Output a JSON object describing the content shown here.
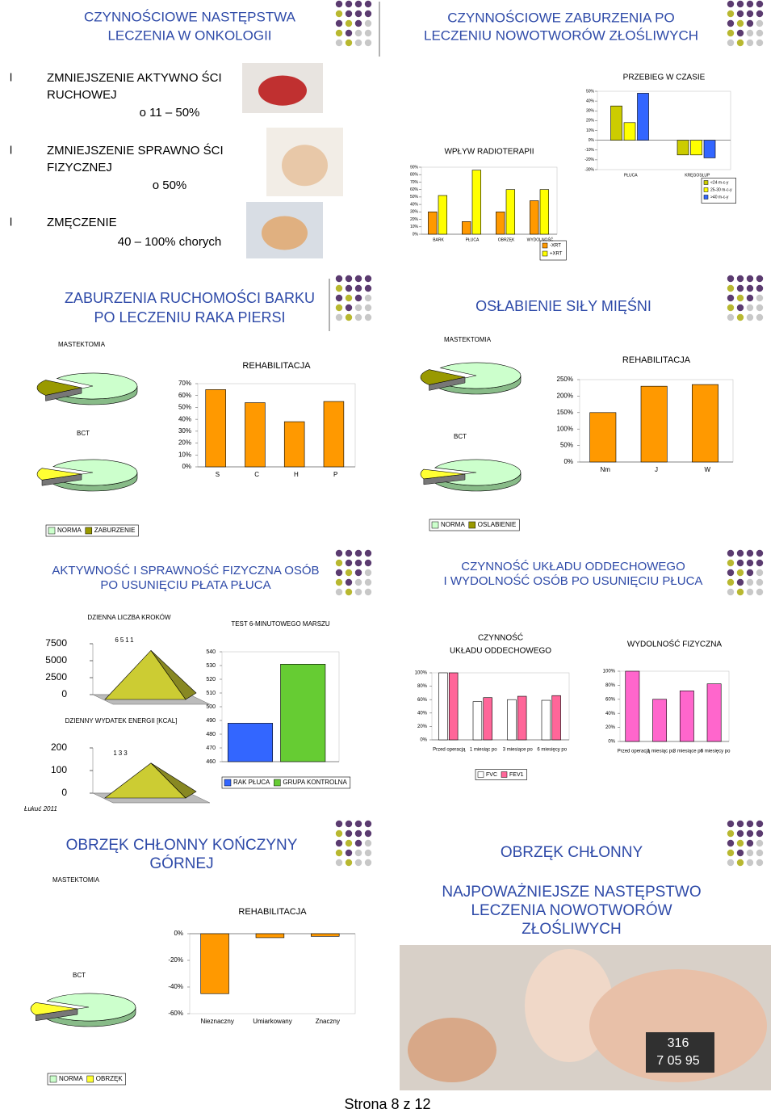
{
  "slides": [
    {
      "title": [
        "CZYNNOŚCIOWE NASTĘPSTWA",
        "LECZENIA W ONKOLOGII"
      ],
      "items": [
        {
          "bullet": "l",
          "lines": [
            "ZMNIEJSZENIE AKTYWNO ŚCI",
            "RUCHOWEJ"
          ],
          "detail": "o 11 – 50%"
        },
        {
          "bullet": "l",
          "lines": [
            "ZMNIEJSZENIE SPRAWNO ŚCI",
            "FIZYCZNEJ"
          ],
          "detail": "o 50%"
        },
        {
          "bullet": "l",
          "lines": [
            "ZMĘCZENIE"
          ],
          "detail": "40 – 100% chorych"
        }
      ]
    },
    {
      "title": [
        "CZYNNOŚCIOWE ZABURZENIA PO",
        "LECZENIU NOWOTWORÓW ZŁOŚLIWYCH"
      ],
      "charts": [
        {
          "type": "bar",
          "title": [
            "WPŁYW RADIOTERAPII"
          ],
          "categories": [
            "BARK",
            "PŁUCA",
            "OBRZĘK",
            "WYDOLNOŚĆ"
          ],
          "series": [
            {
              "name": "-XRT",
              "color": "#ff9900",
              "values": [
                30,
                17,
                30,
                45
              ]
            },
            {
              "name": "+XRT",
              "color": "#ffff00",
              "values": [
                52,
                86,
                60,
                60
              ]
            }
          ],
          "ylim": [
            0,
            90
          ],
          "yticks": [
            {
              "value": 0,
              "label": "0%"
            },
            {
              "value": 10,
              "label": "10%"
            },
            {
              "value": 20,
              "label": "20%"
            },
            {
              "value": 30,
              "label": "30%"
            },
            {
              "value": 40,
              "label": "40%"
            },
            {
              "value": 50,
              "label": "50%"
            },
            {
              "value": 60,
              "label": "60%"
            },
            {
              "value": 70,
              "label": "70%"
            },
            {
              "value": 80,
              "label": "80%"
            },
            {
              "value": 90,
              "label": "90%"
            }
          ]
        },
        {
          "type": "bar",
          "title": [
            "PRZEBIEG W CZASIE"
          ],
          "categories": [
            "PŁUCA",
            "KRĘGOSŁUP"
          ],
          "series": [
            {
              "name": "<24 m-c-y",
              "color": "#cccc00",
              "values": [
                35,
                -15
              ]
            },
            {
              "name": "25-30 m-c-y",
              "color": "#ffff00",
              "values": [
                18,
                -15
              ]
            },
            {
              "name": ">40 m-c-y",
              "color": "#3366ff",
              "values": [
                48,
                -18
              ]
            }
          ],
          "ylim": [
            -30,
            50
          ],
          "yticks": [
            {
              "value": -30,
              "label": "-30%"
            },
            {
              "value": -20,
              "label": "-20%"
            },
            {
              "value": -10,
              "label": "-10%"
            },
            {
              "value": 0,
              "label": "0%"
            },
            {
              "value": 10,
              "label": "10%"
            },
            {
              "value": 20,
              "label": "20%"
            },
            {
              "value": 30,
              "label": "30%"
            },
            {
              "value": 40,
              "label": "40%"
            },
            {
              "value": 50,
              "label": "50%"
            }
          ]
        }
      ]
    },
    {
      "title": [
        "ZABURZENIA RUCHOMOŚCI BARKU",
        "PO LECZENIU RAKA PIERSI"
      ],
      "charts": [
        {
          "type": "pie",
          "categories": [
            "NORMA",
            "ZABURZENIE"
          ],
          "series": [
            {
              "name": "MASTEKTOMIA",
              "colors": [
                "#ccffcc",
                "#999900"
              ],
              "values": [
                80,
                20
              ]
            },
            {
              "name": "BCT",
              "colors": [
                "#ccffcc",
                "#ffff33"
              ],
              "values": [
                85,
                15
              ]
            }
          ]
        },
        {
          "type": "bar",
          "title": [
            "REHABILITACJA"
          ],
          "categories": [
            "S",
            "C",
            "H",
            "P"
          ],
          "values": [
            65,
            54,
            38,
            55
          ],
          "color": "#ff9900",
          "ylim": [
            0,
            70
          ],
          "yticks": [
            {
              "value": 0,
              "label": "0%"
            },
            {
              "value": 10,
              "label": "10%"
            },
            {
              "value": 20,
              "label": "20%"
            },
            {
              "value": 30,
              "label": "30%"
            },
            {
              "value": 40,
              "label": "40%"
            },
            {
              "value": 50,
              "label": "50%"
            },
            {
              "value": 60,
              "label": "60%"
            },
            {
              "value": 70,
              "label": "70%"
            }
          ]
        }
      ]
    },
    {
      "title": [
        "OSŁABIENIE SIŁY MIĘŚNI"
      ],
      "charts": [
        {
          "type": "pie",
          "categories": [
            "NORMA",
            "OSLABIENIE"
          ],
          "series": [
            {
              "name": "MASTEKTOMIA",
              "colors": [
                "#ccffcc",
                "#999900"
              ],
              "values": [
                80,
                20
              ]
            },
            {
              "name": "BCT",
              "colors": [
                "#ccffcc",
                "#ffff33"
              ],
              "values": [
                88,
                12
              ]
            }
          ]
        },
        {
          "type": "bar",
          "title": [
            "REHABILITACJA"
          ],
          "categories": [
            "Nm",
            "J",
            "W"
          ],
          "values": [
            150,
            230,
            235
          ],
          "color": "#ff9900",
          "ylim": [
            0,
            250
          ],
          "yticks": [
            {
              "value": 0,
              "label": "0%"
            },
            {
              "value": 50,
              "label": "50%"
            },
            {
              "value": 100,
              "label": "100%"
            },
            {
              "value": 150,
              "label": "150%"
            },
            {
              "value": 200,
              "label": "200%"
            },
            {
              "value": 250,
              "label": "250%"
            }
          ]
        }
      ]
    },
    {
      "title": [
        "AKTYWNOŚĆ I SPRAWNOŚĆ FIZYCZNA OSÓB",
        "PO USUNIĘCIU PŁATA PŁUCA"
      ],
      "charts": [
        {
          "type": "pyramid",
          "title": [
            "DZIENNA LICZBA KROKÓW"
          ],
          "value": 6511,
          "color": "#cccc33",
          "ylim": [
            0,
            7500
          ],
          "yticks": [
            0,
            2500,
            5000,
            7500
          ]
        },
        {
          "type": "pyramid",
          "title": [
            "DZIENNY WYDATEK ENERGII [KCAL]"
          ],
          "value": 133,
          "color": "#cccc33",
          "ylim": [
            0,
            200
          ],
          "yticks": [
            0,
            100,
            200
          ]
        },
        {
          "type": "bar",
          "title": [
            "TEST 6-MINUTOWEGO MARSZU"
          ],
          "categories": [
            null
          ],
          "series": [
            {
              "name": "RAK PŁUCA",
              "color": "#3366ff",
              "values": [
                488
              ]
            },
            {
              "name": "GRUPA KONTROLNA",
              "color": "#66cc33",
              "values": [
                531
              ]
            }
          ],
          "ylim": [
            460,
            540
          ],
          "yticks": [
            460,
            470,
            480,
            490,
            500,
            510,
            520,
            530,
            540
          ]
        }
      ],
      "source": "Łukuć 2011"
    },
    {
      "title": [
        "CZYNNOŚĆ UKŁADU ODDECHOWEGO",
        "I WYDOLNOŚĆ OSÓB PO USUNIĘCIU PŁUCA"
      ],
      "charts": [
        {
          "type": "bar",
          "title": [
            "CZYNNOŚĆ",
            "UKŁADU ODDECHOWEGO"
          ],
          "categories": [
            "Przed operacją",
            "1 miesiąc po",
            "3 miesiące po",
            "6 miesięcy po"
          ],
          "series": [
            {
              "name": "FVC",
              "color": "#ffffff",
              "values": [
                100,
                57,
                60,
                59
              ]
            },
            {
              "name": "FEV1",
              "color": "#ff6699",
              "values": [
                100,
                63,
                65,
                66
              ]
            }
          ],
          "ylim": [
            0,
            100
          ],
          "yticks": [
            {
              "value": 0,
              "label": "0%"
            },
            {
              "value": 20,
              "label": "20%"
            },
            {
              "value": 40,
              "label": "40%"
            },
            {
              "value": 60,
              "label": "60%"
            },
            {
              "value": 80,
              "label": "80%"
            },
            {
              "value": 100,
              "label": "100%"
            }
          ]
        },
        {
          "type": "bar",
          "title": [
            "WYDOLNOŚĆ FIZYCZNA"
          ],
          "categories": [
            "Przed operacją",
            "1 miesiąc po",
            "3 miesiące po",
            "6 miesięcy po"
          ],
          "values": [
            100,
            60,
            72,
            82
          ],
          "color": "#ff66cc",
          "ylim": [
            0,
            100
          ],
          "yticks": [
            {
              "value": 0,
              "label": "0%"
            },
            {
              "value": 20,
              "label": "20%"
            },
            {
              "value": 40,
              "label": "40%"
            },
            {
              "value": 60,
              "label": "60%"
            },
            {
              "value": 80,
              "label": "80%"
            },
            {
              "value": 100,
              "label": "100%"
            }
          ]
        }
      ]
    },
    {
      "title": [
        "OBRZĘK CHŁONNY KOŃCZYNY",
        "GÓRNEJ"
      ],
      "label": "MASTEKTOMIA",
      "charts": [
        {
          "type": "pie",
          "categories": [
            "NORMA",
            "OBRZĘK"
          ],
          "series": [
            {
              "name": "BCT",
              "colors": [
                "#ccffcc",
                "#ffff33"
              ],
              "values": [
                85,
                15
              ]
            }
          ]
        },
        {
          "type": "bar",
          "title": [
            "REHABILITACJA"
          ],
          "categories": [
            "Nieznaczny",
            "Umiarkowany",
            "Znaczny"
          ],
          "values": [
            -45,
            -3,
            -2
          ],
          "color": "#ff9900",
          "ylim": [
            -60,
            0
          ],
          "yticks": [
            {
              "value": -60,
              "label": "-60%"
            },
            {
              "value": -40,
              "label": "-40%"
            },
            {
              "value": -20,
              "label": "-20%"
            },
            {
              "value": 0,
              "label": "0%"
            }
          ]
        }
      ]
    },
    {
      "title": [
        "OBRZĘK CHŁONNY"
      ],
      "subtitle": [
        "NAJPOWAŻNIEJSZE NASTĘPSTWO",
        "LECZENIA NOWOTWORÓW",
        "ZŁOŚLIWYCH"
      ],
      "photo_label": [
        "316",
        "7 05 95"
      ]
    }
  ],
  "footer": {
    "page": "Strona 8 z 12"
  }
}
